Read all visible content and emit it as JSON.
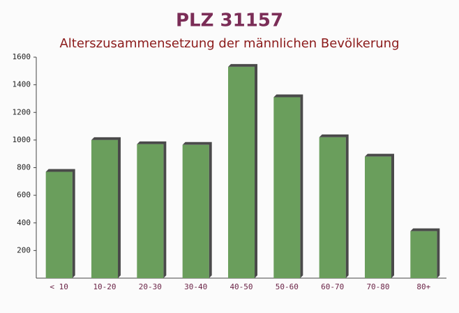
{
  "chart_data": {
    "type": "bar",
    "title": "PLZ 31157",
    "subtitle": "Alterszusammensetzung der männlichen Bevölkerung",
    "categories": [
      "< 10",
      "10-20",
      "20-30",
      "30-40",
      "40-50",
      "50-60",
      "60-70",
      "70-80",
      "80+"
    ],
    "values": [
      770,
      1000,
      970,
      965,
      1530,
      1310,
      1020,
      880,
      340
    ],
    "color": "#6a9e5c",
    "ylim": [
      0,
      1600
    ],
    "yticks": [
      200,
      400,
      600,
      800,
      1000,
      1200,
      1400,
      1600
    ]
  }
}
